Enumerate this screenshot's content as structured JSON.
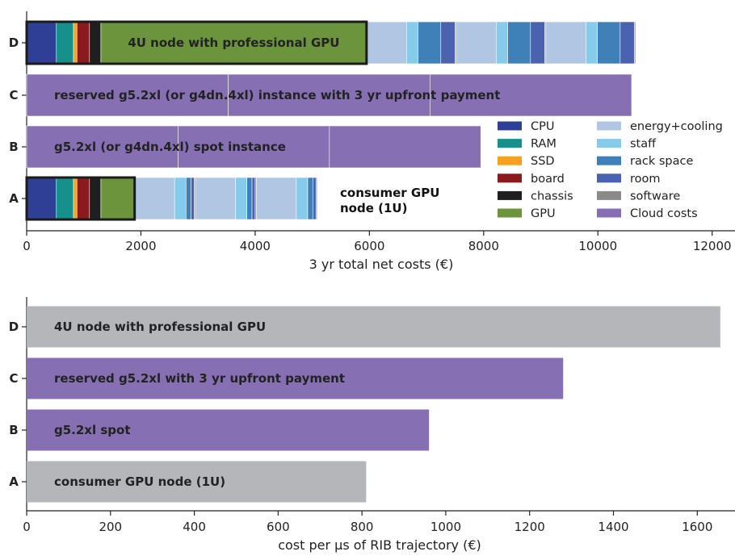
{
  "chart_data": [
    {
      "type": "bar",
      "orientation": "horizontal",
      "stacked": true,
      "xlabel": "3 yr total net costs (€)",
      "xlim": [
        0,
        12400
      ],
      "xticks": [
        0,
        2000,
        4000,
        6000,
        8000,
        10000,
        12000
      ],
      "xtick_labels": [
        "0",
        "2000",
        "4000",
        "6000",
        "8000",
        "10000",
        "12000"
      ],
      "categories": [
        "A",
        "B",
        "C",
        "D"
      ],
      "legend_position": "lower-right",
      "legend": [
        {
          "name": "CPU",
          "color": "#2f3f96"
        },
        {
          "name": "RAM",
          "color": "#16908a"
        },
        {
          "name": "SSD",
          "color": "#f6a21a"
        },
        {
          "name": "board",
          "color": "#8b1a1e"
        },
        {
          "name": "chassis",
          "color": "#1f1f1f"
        },
        {
          "name": "GPU",
          "color": "#6b943c"
        },
        {
          "name": "energy+cooling",
          "color": "#b1c6e2"
        },
        {
          "name": "staff",
          "color": "#86cbec"
        },
        {
          "name": "rack space",
          "color": "#3f80b8"
        },
        {
          "name": "room",
          "color": "#4b62b0"
        },
        {
          "name": "software",
          "color": "#8a8a8a"
        },
        {
          "name": "Cloud costs",
          "color": "#8670b3"
        }
      ],
      "bars": [
        {
          "category": "A",
          "hardware_outlined": true,
          "segments": [
            {
              "type": "CPU",
              "value": 520
            },
            {
              "type": "RAM",
              "value": 300
            },
            {
              "type": "SSD",
              "value": 60
            },
            {
              "type": "board",
              "value": 220
            },
            {
              "type": "chassis",
              "value": 200
            },
            {
              "type": "GPU",
              "value": 590
            },
            {
              "type": "energy+cooling",
              "value": 700
            },
            {
              "type": "staff",
              "value": 200
            },
            {
              "type": "rack space",
              "value": 90
            },
            {
              "type": "room",
              "value": 55
            },
            {
              "type": "software",
              "value": 20
            },
            {
              "type": "energy+cooling",
              "value": 700
            },
            {
              "type": "staff",
              "value": 200
            },
            {
              "type": "rack space",
              "value": 90
            },
            {
              "type": "room",
              "value": 55
            },
            {
              "type": "software",
              "value": 20
            },
            {
              "type": "energy+cooling",
              "value": 700
            },
            {
              "type": "staff",
              "value": 200
            },
            {
              "type": "rack space",
              "value": 90
            },
            {
              "type": "room",
              "value": 55
            },
            {
              "type": "software",
              "value": 20
            }
          ],
          "annotation": "consumer GPU\nnode (1U)"
        },
        {
          "category": "B",
          "hardware_outlined": false,
          "segments": [
            {
              "type": "Cloud costs",
              "value": 2650
            },
            {
              "type": "Cloud costs",
              "value": 2650
            },
            {
              "type": "Cloud costs",
              "value": 2650
            }
          ],
          "label": "g5.2xl (or g4dn.4xl) spot instance"
        },
        {
          "category": "C",
          "hardware_outlined": false,
          "segments": [
            {
              "type": "Cloud costs",
              "value": 3530
            },
            {
              "type": "Cloud costs",
              "value": 3530
            },
            {
              "type": "Cloud costs",
              "value": 3530
            }
          ],
          "label": "reserved g5.2xl (or g4dn.4xl) instance with 3 yr upfront payment"
        },
        {
          "category": "D",
          "hardware_outlined": true,
          "segments": [
            {
              "type": "CPU",
              "value": 520
            },
            {
              "type": "RAM",
              "value": 300
            },
            {
              "type": "SSD",
              "value": 60
            },
            {
              "type": "board",
              "value": 220
            },
            {
              "type": "chassis",
              "value": 200
            },
            {
              "type": "GPU",
              "value": 4650
            },
            {
              "type": "energy+cooling",
              "value": 700
            },
            {
              "type": "staff",
              "value": 200
            },
            {
              "type": "rack space",
              "value": 400
            },
            {
              "type": "room",
              "value": 250
            },
            {
              "type": "software",
              "value": 20
            },
            {
              "type": "energy+cooling",
              "value": 700
            },
            {
              "type": "staff",
              "value": 200
            },
            {
              "type": "rack space",
              "value": 400
            },
            {
              "type": "room",
              "value": 250
            },
            {
              "type": "software",
              "value": 20
            },
            {
              "type": "energy+cooling",
              "value": 700
            },
            {
              "type": "staff",
              "value": 200
            },
            {
              "type": "rack space",
              "value": 400
            },
            {
              "type": "room",
              "value": 250
            },
            {
              "type": "software",
              "value": 20
            }
          ],
          "label": "4U node with professional GPU",
          "label_segment": "GPU"
        }
      ]
    },
    {
      "type": "bar",
      "orientation": "horizontal",
      "xlabel": "cost per µs of RIB trajectory (€)",
      "xlim": [
        0,
        1690
      ],
      "xticks": [
        0,
        200,
        400,
        600,
        800,
        1000,
        1200,
        1400,
        1600
      ],
      "xtick_labels": [
        "0",
        "200",
        "400",
        "600",
        "800",
        "1000",
        "1200",
        "1400",
        "1600"
      ],
      "categories": [
        "A",
        "B",
        "C",
        "D"
      ],
      "bars": [
        {
          "category": "A",
          "value": 810,
          "label": "consumer GPU node (1U)",
          "color": "#b5b6ba"
        },
        {
          "category": "B",
          "value": 960,
          "label": "g5.2xl spot",
          "color": "#8670b3"
        },
        {
          "category": "C",
          "value": 1280,
          "label": "reserved g5.2xl with 3 yr upfront payment",
          "color": "#8670b3"
        },
        {
          "category": "D",
          "value": 1655,
          "label": "4U node with professional GPU",
          "color": "#b5b6ba"
        }
      ]
    }
  ]
}
